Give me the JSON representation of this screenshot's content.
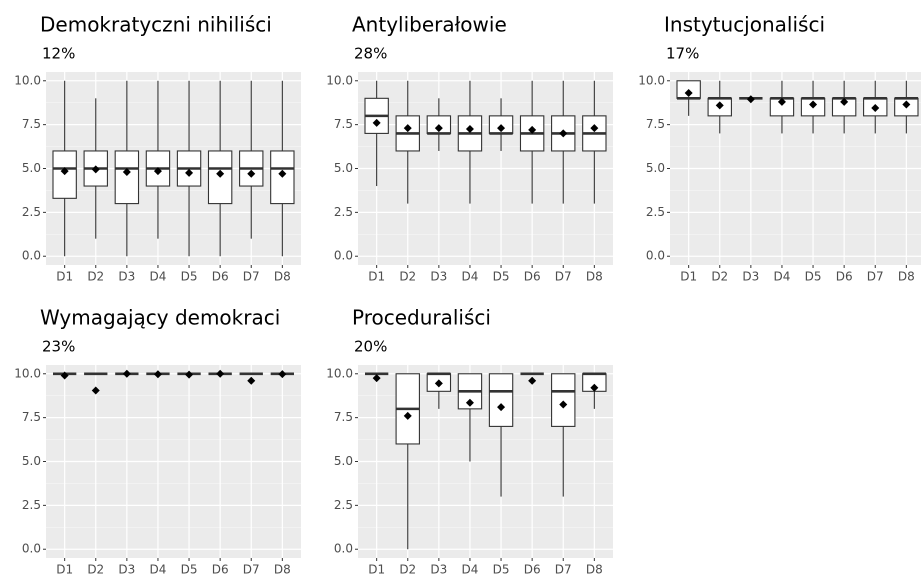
{
  "chart_data": [
    {
      "type": "box",
      "title": "Demokratyczni nihiliści",
      "subtitle": "12%",
      "categories": [
        "D1",
        "D2",
        "D3",
        "D4",
        "D5",
        "D6",
        "D7",
        "D8"
      ],
      "min": [
        0,
        1,
        0,
        1,
        0,
        0,
        1,
        0
      ],
      "q1": [
        3.3,
        4,
        3,
        4,
        4,
        3,
        4,
        3
      ],
      "median": [
        5,
        5,
        5,
        5,
        5,
        5,
        5,
        5
      ],
      "q3": [
        6,
        6,
        6,
        6,
        6,
        6,
        6,
        6
      ],
      "max": [
        10,
        9,
        10,
        10,
        10,
        10,
        10,
        10
      ],
      "mean": [
        4.85,
        4.95,
        4.8,
        4.85,
        4.75,
        4.7,
        4.7,
        4.7
      ],
      "ylim": [
        -0.5,
        10.5
      ],
      "yticks": [
        {
          "value": 0,
          "label": "0.0"
        },
        2.5,
        {
          "value": 5,
          "label": "5.0"
        },
        7.5,
        {
          "value": 10,
          "label": "10.0"
        }
      ],
      "grid": true
    },
    {
      "type": "box",
      "title": "Antyliberałowie",
      "subtitle": "28%",
      "categories": [
        "D1",
        "D2",
        "D3",
        "D4",
        "D5",
        "D6",
        "D7",
        "D8"
      ],
      "min": [
        4,
        3,
        6,
        3,
        6,
        3,
        3,
        3
      ],
      "q1": [
        7,
        6,
        7,
        6,
        7,
        6,
        6,
        6
      ],
      "median": [
        8,
        7,
        7,
        7,
        7,
        7,
        7,
        7
      ],
      "q3": [
        9,
        8,
        8,
        8,
        8,
        8,
        8,
        8
      ],
      "max": [
        10,
        10,
        9,
        10,
        9,
        10,
        10,
        10
      ],
      "mean": [
        7.6,
        7.3,
        7.3,
        7.25,
        7.3,
        7.2,
        7.0,
        7.3
      ],
      "ylim": [
        -0.5,
        10.5
      ],
      "yticks": [
        {
          "value": 0,
          "label": "0.0"
        },
        2.5,
        {
          "value": 5,
          "label": "5.0"
        },
        7.5,
        {
          "value": 10,
          "label": "10.0"
        }
      ],
      "grid": true
    },
    {
      "type": "box",
      "title": "Instytucjonaliści",
      "subtitle": "17%",
      "categories": [
        "D1",
        "D2",
        "D3",
        "D4",
        "D5",
        "D6",
        "D7",
        "D8"
      ],
      "min": [
        8,
        7,
        9,
        7,
        7,
        7,
        7,
        7
      ],
      "q1": [
        9,
        8,
        9,
        8,
        8,
        8,
        8,
        8
      ],
      "median": [
        9,
        9,
        9,
        9,
        9,
        9,
        9,
        9
      ],
      "q3": [
        10,
        9,
        9,
        9,
        9,
        9,
        9,
        9
      ],
      "max": [
        10,
        10,
        9,
        10,
        10,
        10,
        10,
        10
      ],
      "mean": [
        9.3,
        8.6,
        8.95,
        8.8,
        8.65,
        8.8,
        8.45,
        8.65
      ],
      "ylim": [
        -0.5,
        10.5
      ],
      "yticks": [
        {
          "value": 0,
          "label": "0.0"
        },
        2.5,
        {
          "value": 5,
          "label": "5.0"
        },
        7.5,
        {
          "value": 10,
          "label": "10.0"
        }
      ],
      "grid": true
    },
    {
      "type": "box",
      "title": "Wymagający demokraci",
      "subtitle": "23%",
      "categories": [
        "D1",
        "D2",
        "D3",
        "D4",
        "D5",
        "D6",
        "D7",
        "D8"
      ],
      "min": [
        10,
        10,
        10,
        10,
        10,
        10,
        10,
        10
      ],
      "q1": [
        10,
        10,
        10,
        10,
        10,
        10,
        10,
        10
      ],
      "median": [
        10,
        10,
        10,
        10,
        10,
        10,
        10,
        10
      ],
      "q3": [
        10,
        10,
        10,
        10,
        10,
        10,
        10,
        10
      ],
      "max": [
        10,
        10,
        10,
        10,
        10,
        10,
        10,
        10
      ],
      "mean": [
        9.9,
        9.05,
        10,
        9.97,
        9.95,
        10,
        9.6,
        9.98
      ],
      "ylim": [
        -0.5,
        10.5
      ],
      "yticks": [
        {
          "value": 0,
          "label": "0.0"
        },
        2.5,
        {
          "value": 5,
          "label": "5.0"
        },
        7.5,
        {
          "value": 10,
          "label": "10.0"
        }
      ],
      "grid": true
    },
    {
      "type": "box",
      "title": "Proceduraliści",
      "subtitle": "20%",
      "categories": [
        "D1",
        "D2",
        "D3",
        "D4",
        "D5",
        "D6",
        "D7",
        "D8"
      ],
      "min": [
        10,
        0,
        8,
        5,
        3,
        10,
        3,
        8
      ],
      "q1": [
        10,
        6,
        9,
        8,
        7,
        10,
        7,
        9
      ],
      "median": [
        10,
        8,
        10,
        9,
        9,
        10,
        9,
        10
      ],
      "q3": [
        10,
        10,
        10,
        10,
        10,
        10,
        10,
        10
      ],
      "max": [
        10,
        10,
        10,
        10,
        10,
        10,
        10,
        10
      ],
      "mean": [
        9.75,
        7.6,
        9.45,
        8.35,
        8.1,
        9.6,
        8.25,
        9.2
      ],
      "ylim": [
        -0.5,
        10.5
      ],
      "yticks": [
        {
          "value": 0,
          "label": "0.0"
        },
        2.5,
        {
          "value": 5,
          "label": "5.0"
        },
        7.5,
        {
          "value": 10,
          "label": "10.0"
        }
      ],
      "grid": true
    }
  ]
}
